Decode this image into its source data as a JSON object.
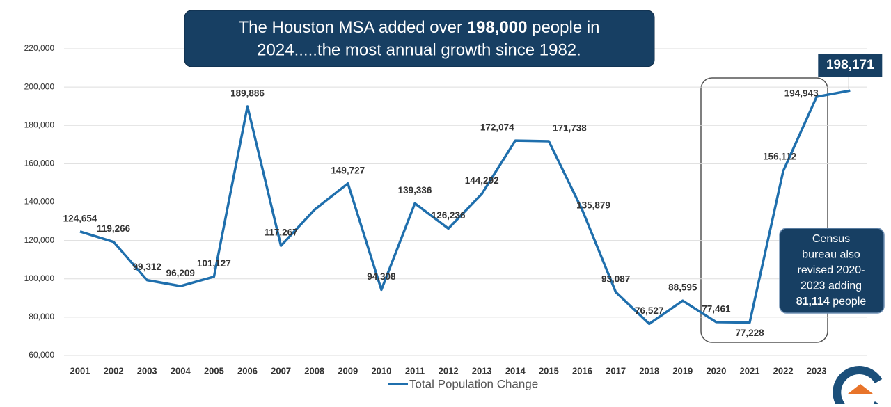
{
  "chart_data": {
    "type": "line",
    "annotations": {
      "headline": [
        "The Houston MSA added over ",
        "198,000",
        " people in",
        "2024.....the most annual growth since 1982."
      ],
      "census_note": [
        "Census",
        "bureau also",
        "revised 2020-",
        "2023 adding",
        "81,114",
        " people"
      ]
    },
    "categories": [
      "2001",
      "2002",
      "2003",
      "2004",
      "2005",
      "2006",
      "2007",
      "2008",
      "2009",
      "2010",
      "2011",
      "2012",
      "2013",
      "2014",
      "2015",
      "2016",
      "2017",
      "2018",
      "2019",
      "2020",
      "2021",
      "2022",
      "2023",
      null
    ],
    "series": [
      {
        "name": "Total Population Change",
        "color": "#1f6fad",
        "values": [
          124654,
          119266,
          99312,
          96209,
          101127,
          189886,
          117267,
          136000,
          149727,
          94308,
          139336,
          126236,
          144292,
          172074,
          171738,
          135879,
          93087,
          76527,
          88595,
          77461,
          77228,
          156112,
          194943,
          198171
        ],
        "value_labels": [
          "124,654",
          "119,266",
          "99,312",
          "96,209",
          "101,127",
          "189,886",
          "117,267",
          null,
          "149,727",
          "94,308",
          "139,336",
          "126,236",
          "144,292",
          "172,074",
          "171,738",
          "135,879",
          "93,087",
          "76,527",
          "88,595",
          "77,461",
          "77,228",
          "156,112",
          "194,943",
          "198,171"
        ]
      }
    ],
    "ylim": [
      60000,
      220000
    ],
    "yticks": [
      {
        "value": 60000,
        "label": "60,000"
      },
      {
        "value": 80000,
        "label": "80,000"
      },
      {
        "value": 100000,
        "label": "100,000"
      },
      {
        "value": 120000,
        "label": "120,000"
      },
      {
        "value": 140000,
        "label": "140,000"
      },
      {
        "value": 160000,
        "label": "160,000"
      },
      {
        "value": 180000,
        "label": "180,000"
      },
      {
        "value": 200000,
        "label": "200,000"
      },
      {
        "value": 220000,
        "label": "220,000"
      }
    ],
    "grid": true,
    "legend": "bottom"
  }
}
